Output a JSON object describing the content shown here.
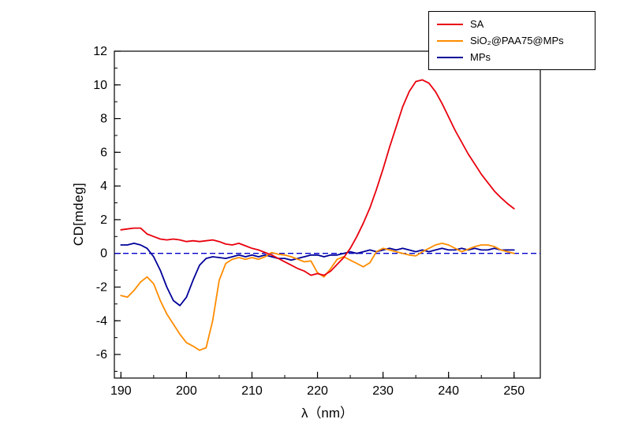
{
  "figure": {
    "background": "#ffffff",
    "axis_color": "#000000"
  },
  "chart_data": {
    "type": "line",
    "title": "",
    "xlabel": "λ（nm）",
    "ylabel": "CD[mdeg]",
    "xlim": [
      189,
      254
    ],
    "ylim": [
      -7.4,
      12
    ],
    "x_ticks": [
      190,
      200,
      210,
      220,
      230,
      240,
      250
    ],
    "x_minor_step": 5,
    "y_ticks": [
      -6,
      -4,
      -2,
      0,
      2,
      4,
      6,
      8,
      10,
      12
    ],
    "y_minor_step": 1,
    "grid": false,
    "legend_position": "top-right",
    "zero_line": {
      "y": 0,
      "color": "#0000cd",
      "dash": [
        7,
        4
      ]
    },
    "series": [
      {
        "name": "SA",
        "color": "#e8000d",
        "x_start": 190,
        "x_step": 1,
        "y": [
          1.4,
          1.45,
          1.5,
          1.5,
          1.15,
          1.0,
          0.85,
          0.8,
          0.85,
          0.8,
          0.7,
          0.75,
          0.7,
          0.75,
          0.8,
          0.7,
          0.55,
          0.5,
          0.6,
          0.45,
          0.3,
          0.2,
          0.05,
          -0.1,
          -0.3,
          -0.5,
          -0.7,
          -0.9,
          -1.05,
          -1.3,
          -1.2,
          -1.3,
          -1.05,
          -0.65,
          -0.25,
          0.3,
          1.0,
          1.8,
          2.7,
          3.8,
          5.0,
          6.3,
          7.5,
          8.7,
          9.6,
          10.2,
          10.3,
          10.1,
          9.6,
          8.9,
          8.1,
          7.3,
          6.6,
          5.9,
          5.3,
          4.7,
          4.2,
          3.7,
          3.3,
          2.95,
          2.65
        ]
      },
      {
        "name": "SiO₂@PAA75@MPs",
        "color": "#ff8c00",
        "x_start": 190,
        "x_step": 1,
        "y": [
          -2.5,
          -2.6,
          -2.2,
          -1.7,
          -1.4,
          -1.8,
          -2.8,
          -3.6,
          -4.2,
          -4.8,
          -5.3,
          -5.5,
          -5.75,
          -5.6,
          -4.0,
          -1.6,
          -0.6,
          -0.35,
          -0.25,
          -0.35,
          -0.25,
          -0.35,
          -0.2,
          0.05,
          -0.05,
          -0.1,
          -0.2,
          -0.35,
          -0.5,
          -0.45,
          -1.15,
          -1.4,
          -0.9,
          -0.35,
          -0.2,
          -0.4,
          -0.6,
          -0.8,
          -0.55,
          0.1,
          0.3,
          0.2,
          0.1,
          0.0,
          -0.1,
          -0.15,
          0.1,
          0.3,
          0.5,
          0.6,
          0.5,
          0.3,
          0.1,
          0.25,
          0.4,
          0.5,
          0.5,
          0.4,
          0.2,
          0.1,
          0.0
        ]
      },
      {
        "name": "MPs",
        "color": "#000099",
        "x_start": 190,
        "x_step": 1,
        "y": [
          0.5,
          0.5,
          0.6,
          0.5,
          0.3,
          -0.2,
          -1.0,
          -2.0,
          -2.8,
          -3.1,
          -2.6,
          -1.6,
          -0.7,
          -0.3,
          -0.2,
          -0.25,
          -0.3,
          -0.2,
          -0.1,
          -0.2,
          -0.1,
          -0.2,
          -0.1,
          -0.2,
          -0.3,
          -0.3,
          -0.4,
          -0.3,
          -0.2,
          -0.1,
          -0.1,
          -0.2,
          -0.1,
          -0.1,
          0.0,
          0.1,
          0.0,
          0.1,
          0.2,
          0.1,
          0.2,
          0.3,
          0.2,
          0.3,
          0.2,
          0.1,
          0.2,
          0.1,
          0.2,
          0.3,
          0.2,
          0.2,
          0.3,
          0.2,
          0.3,
          0.2,
          0.2,
          0.3,
          0.2,
          0.2,
          0.2
        ]
      }
    ]
  }
}
